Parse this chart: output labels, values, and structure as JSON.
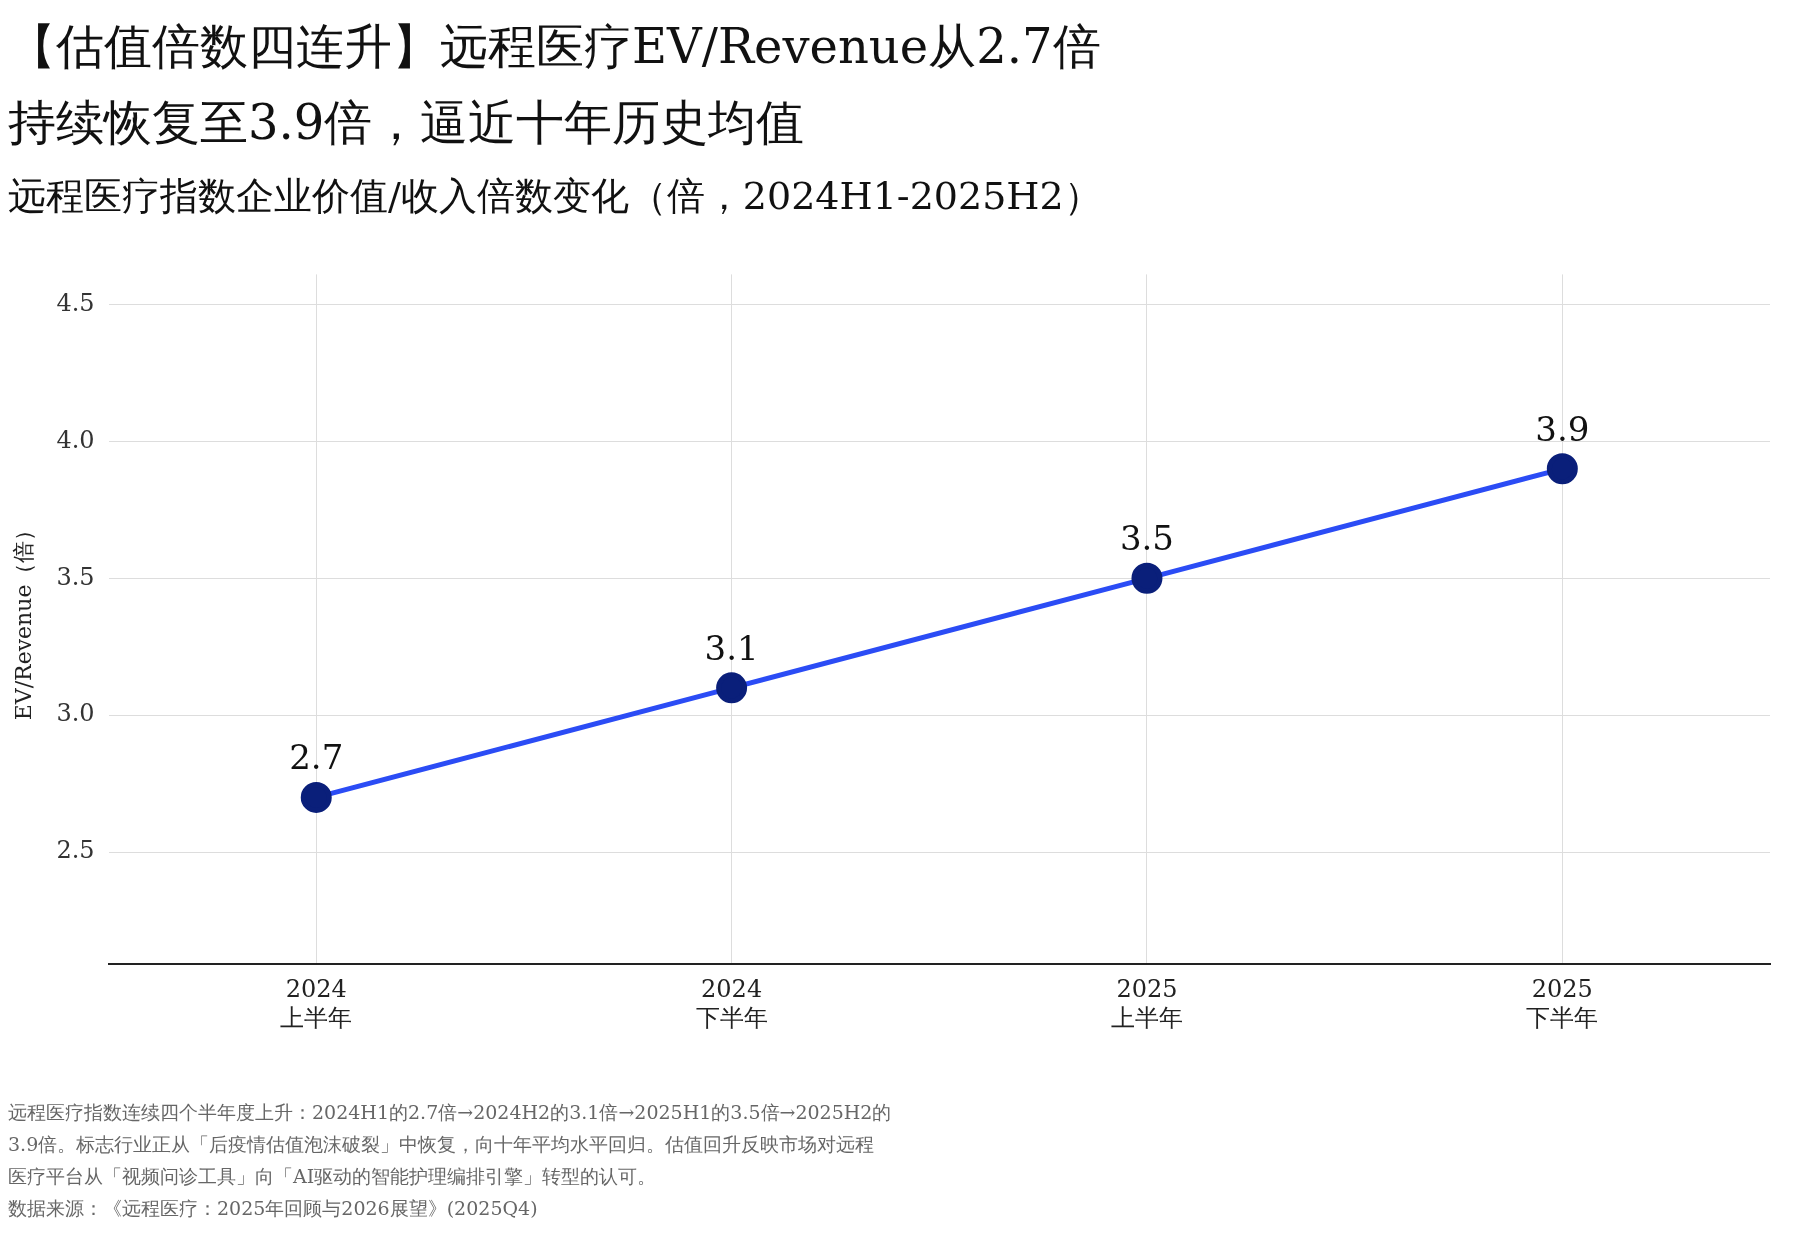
{
  "chart_data": {
    "type": "line",
    "title": "【估值倍数四连升】远程医疗EV/Revenue从2.7倍持续恢复至3.9倍，逼近十年历史均值",
    "subtitle": "远程医疗指数企业价值/收入倍数变化（倍，2024H1-2025H2）",
    "ylabel": "EV/Revenue（倍）",
    "categories": [
      "2024\n上半年",
      "2024\n下半年",
      "2025\n上半年",
      "2025\n下半年"
    ],
    "series": [
      {
        "color": "#2b4cf5",
        "colors": [
          "#0a1f7a",
          "#0a1f7a",
          "#0a1f7a",
          "#0a1f7a"
        ],
        "values": [
          2.7,
          3.1,
          3.5,
          3.9
        ]
      }
    ],
    "ylim": [
      2.09,
      4.61
    ],
    "yticks": [
      2.5,
      {
        "value": 3,
        "label": "3.0"
      },
      3.5,
      {
        "value": 4,
        "label": "4.0"
      },
      4.5
    ],
    "grid": true,
    "legend": false,
    "marker": "circle",
    "line_style": "solid",
    "data_labels": true,
    "annotations": [
      "远程医疗指数连续四个半年度上升：2024H1的2.7倍→2024H2的3.1倍→2025H1的3.5倍→2025H2的3.9倍。标志行业正从「后疫情估值泡沫破裂」中恢复，向十年平均水平回归。估值回升反映市场对远程医疗平台从「视频问诊工具」向「AI驱动的智能护理编排引擎」转型的认可。",
      "数据来源：《远程医疗：2025年回顾与2026展望》(2025Q4)"
    ]
  }
}
